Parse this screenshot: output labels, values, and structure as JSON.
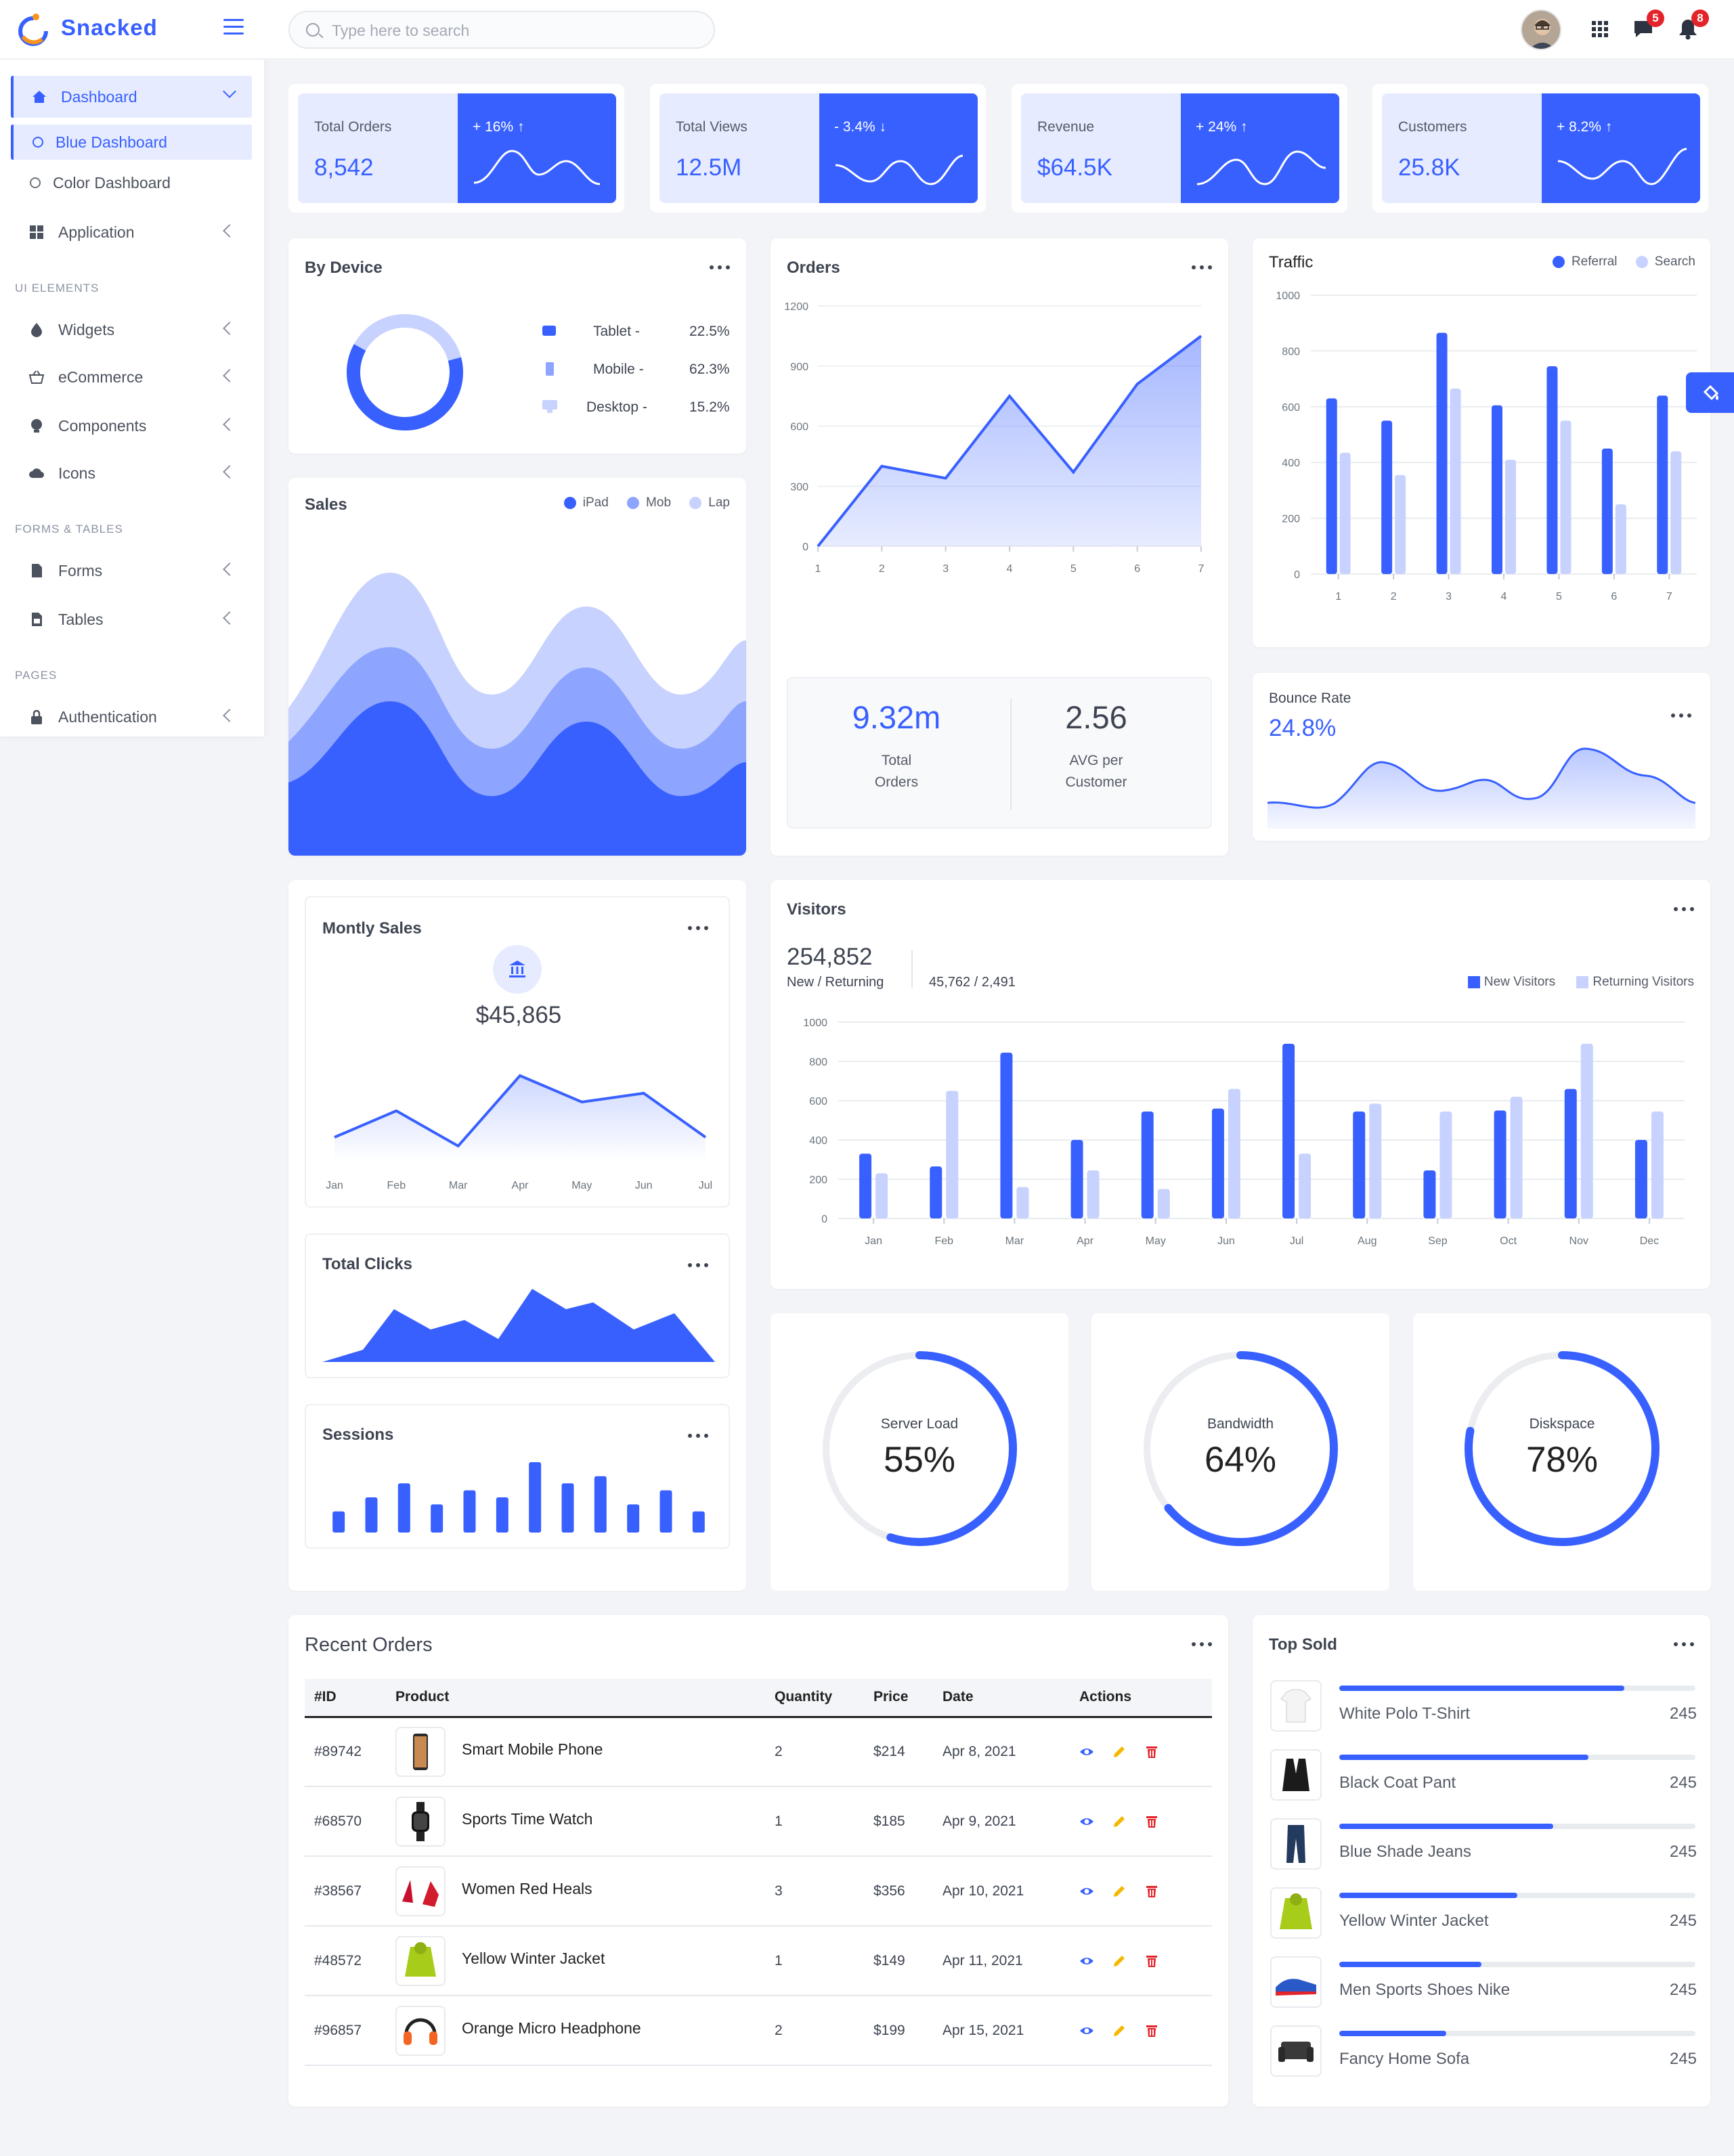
{
  "app": {
    "name": "Snacked"
  },
  "sidebar": {
    "dashboard": "Dashboard",
    "blue_dashboard": "Blue Dashboard",
    "color_dashboard": "Color Dashboard",
    "application": "Application",
    "section_ui": "UI ELEMENTS",
    "widgets": "Widgets",
    "ecommerce": "eCommerce",
    "components": "Components",
    "icons": "Icons",
    "section_forms": "FORMS & TABLES",
    "forms": "Forms",
    "tables": "Tables",
    "section_pages": "PAGES",
    "authentication": "Authentication"
  },
  "topbar": {
    "search_placeholder": "Type here to search",
    "messages_count": "5",
    "notifications_count": "8"
  },
  "stats": [
    {
      "label": "Total Orders",
      "value": "8,542",
      "change": "+ 16% ↑"
    },
    {
      "label": "Total Views",
      "value": "12.5M",
      "change": "- 3.4% ↓"
    },
    {
      "label": "Revenue",
      "value": "$64.5K",
      "change": "+ 24% ↑"
    },
    {
      "label": "Customers",
      "value": "25.8K",
      "change": "+ 8.2% ↑"
    }
  ],
  "by_device": {
    "title": "By Device",
    "items": [
      {
        "label": "Tablet -",
        "value": "22.5%"
      },
      {
        "label": "Mobile -",
        "value": "62.3%"
      },
      {
        "label": "Desktop -",
        "value": "15.2%"
      }
    ]
  },
  "sales": {
    "title": "Sales",
    "legend": [
      "iPad",
      "Mob",
      "Lap"
    ]
  },
  "orders": {
    "title": "Orders",
    "total_value": "9.32m",
    "total_label1": "Total",
    "total_label2": "Orders",
    "avg_value": "2.56",
    "avg_label1": "AVG per",
    "avg_label2": "Customer"
  },
  "traffic": {
    "title": "Traffic",
    "legend": [
      "Referral",
      "Search"
    ]
  },
  "bounce": {
    "title": "Bounce Rate",
    "value": "24.8%"
  },
  "monthly": {
    "title": "Montly Sales",
    "value": "$45,865"
  },
  "total_clicks": {
    "title": "Total Clicks"
  },
  "sessions": {
    "title": "Sessions"
  },
  "visitors": {
    "title": "Visitors",
    "total": "254,852",
    "sub": "New / Returning",
    "split": "45,762 / 2,491",
    "legend": [
      "New Visitors",
      "Returning Visitors"
    ]
  },
  "gauges": [
    {
      "label": "Server Load",
      "value": "55%",
      "pct": 0.55
    },
    {
      "label": "Bandwidth",
      "value": "64%",
      "pct": 0.64
    },
    {
      "label": "Diskspace",
      "value": "78%",
      "pct": 0.78
    }
  ],
  "recent_orders": {
    "title": "Recent Orders",
    "headers": [
      "#ID",
      "Product",
      "Quantity",
      "Price",
      "Date",
      "Actions"
    ],
    "rows": [
      {
        "id": "#89742",
        "product": "Smart Mobile Phone",
        "qty": "2",
        "price": "$214",
        "date": "Apr 8, 2021"
      },
      {
        "id": "#68570",
        "product": "Sports Time Watch",
        "qty": "1",
        "price": "$185",
        "date": "Apr 9, 2021"
      },
      {
        "id": "#38567",
        "product": "Women Red Heals",
        "qty": "3",
        "price": "$356",
        "date": "Apr 10, 2021"
      },
      {
        "id": "#48572",
        "product": "Yellow Winter Jacket",
        "qty": "1",
        "price": "$149",
        "date": "Apr 11, 2021"
      },
      {
        "id": "#96857",
        "product": "Orange Micro Headphone",
        "qty": "2",
        "price": "$199",
        "date": "Apr 15, 2021"
      }
    ]
  },
  "top_sold": {
    "title": "Top Sold",
    "items": [
      {
        "name": "White Polo T-Shirt",
        "value": "245",
        "pct": 0.8
      },
      {
        "name": "Black Coat Pant",
        "value": "245",
        "pct": 0.7
      },
      {
        "name": "Blue Shade Jeans",
        "value": "245",
        "pct": 0.6
      },
      {
        "name": "Yellow Winter Jacket",
        "value": "245",
        "pct": 0.5
      },
      {
        "name": "Men Sports Shoes Nike",
        "value": "245",
        "pct": 0.4
      },
      {
        "name": "Fancy Home Sofa",
        "value": "245",
        "pct": 0.3
      }
    ]
  },
  "colors": {
    "primary": "#3860ff",
    "light": "#c7d2fe",
    "mid": "#8ea5ff",
    "bg": "#f3f4f7"
  },
  "chart_data": [
    {
      "type": "line",
      "title": "Orders",
      "x": [
        "1",
        "2",
        "3",
        "4",
        "5",
        "6",
        "7"
      ],
      "values": [
        0,
        400,
        340,
        750,
        370,
        810,
        1050
      ],
      "ylim": [
        0,
        1200
      ],
      "yticks": [
        "0",
        "300",
        "600",
        "900",
        "1200"
      ]
    },
    {
      "type": "bar",
      "title": "Traffic",
      "categories": [
        "1",
        "2",
        "3",
        "4",
        "5",
        "6",
        "7"
      ],
      "series": [
        {
          "name": "Referral",
          "values": [
            630,
            550,
            865,
            605,
            745,
            450,
            640
          ]
        },
        {
          "name": "Search",
          "values": [
            435,
            355,
            665,
            410,
            550,
            250,
            440
          ]
        }
      ],
      "ylim": [
        0,
        1000
      ],
      "yticks": [
        "0",
        "200",
        "400",
        "600",
        "800",
        "1000"
      ]
    },
    {
      "type": "line",
      "title": "Montly Sales",
      "x": [
        "Jan",
        "Feb",
        "Mar",
        "Apr",
        "May",
        "Jun",
        "Jul"
      ],
      "values": [
        2,
        5,
        1,
        9,
        6,
        7,
        2
      ]
    },
    {
      "type": "bar",
      "title": "Visitors",
      "categories": [
        "Jan",
        "Feb",
        "Mar",
        "Apr",
        "May",
        "Jun",
        "Jul",
        "Aug",
        "Sep",
        "Oct",
        "Nov",
        "Dec"
      ],
      "series": [
        {
          "name": "New Visitors",
          "values": [
            330,
            265,
            845,
            400,
            545,
            560,
            890,
            545,
            245,
            550,
            660,
            400
          ]
        },
        {
          "name": "Returning Visitors",
          "values": [
            230,
            650,
            160,
            245,
            150,
            660,
            330,
            585,
            545,
            620,
            890,
            545
          ]
        }
      ],
      "ylim": [
        0,
        1000
      ],
      "yticks": [
        "0",
        "200",
        "400",
        "600",
        "800",
        "1000"
      ]
    },
    {
      "type": "bar",
      "title": "Sessions",
      "values": [
        3,
        5,
        7,
        4,
        6,
        5,
        10,
        7,
        8,
        4,
        6,
        3
      ]
    }
  ]
}
